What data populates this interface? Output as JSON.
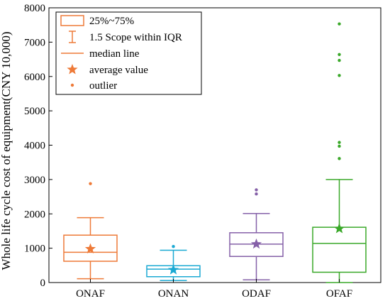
{
  "chart_data": {
    "type": "box",
    "ylabel": "Whole life cycle cost of equipment(CNY 10,000)",
    "xlabel": "",
    "ylim": [
      0,
      8000
    ],
    "yticks": [
      0,
      1000,
      2000,
      3000,
      4000,
      5000,
      6000,
      7000,
      8000
    ],
    "categories": [
      "ONAF",
      "ONAN",
      "ODAF",
      "OFAF"
    ],
    "series": [
      {
        "category": "ONAF",
        "color": "#ee7a38",
        "whisker_low": 110,
        "q1": 620,
        "median": 880,
        "q3": 1380,
        "whisker_high": 1890,
        "mean": 980,
        "outliers": [
          2880
        ]
      },
      {
        "category": "ONAN",
        "color": "#1ba9d3",
        "whisker_low": 60,
        "q1": 170,
        "median": 390,
        "q3": 490,
        "whisker_high": 940,
        "mean": 370,
        "outliers": [
          1050
        ]
      },
      {
        "category": "ODAF",
        "color": "#8560a8",
        "whisker_low": 80,
        "q1": 760,
        "median": 1120,
        "q3": 1450,
        "whisker_high": 2010,
        "mean": 1120,
        "outliers": [
          2580,
          2700
        ]
      },
      {
        "category": "OFAF",
        "color": "#3aa829",
        "whisker_low": 0,
        "q1": 300,
        "median": 1140,
        "q3": 1610,
        "whisker_high": 3000,
        "mean": 1570,
        "outliers": [
          3610,
          3970,
          4080,
          6030,
          6470,
          6640,
          7530
        ]
      }
    ],
    "legend": {
      "placement": "top-left",
      "color": "#ee7a38",
      "items": [
        "25%~75%",
        "1.5 Scope within IQR",
        "median line",
        "average value",
        "outlier"
      ]
    },
    "grid": false
  }
}
